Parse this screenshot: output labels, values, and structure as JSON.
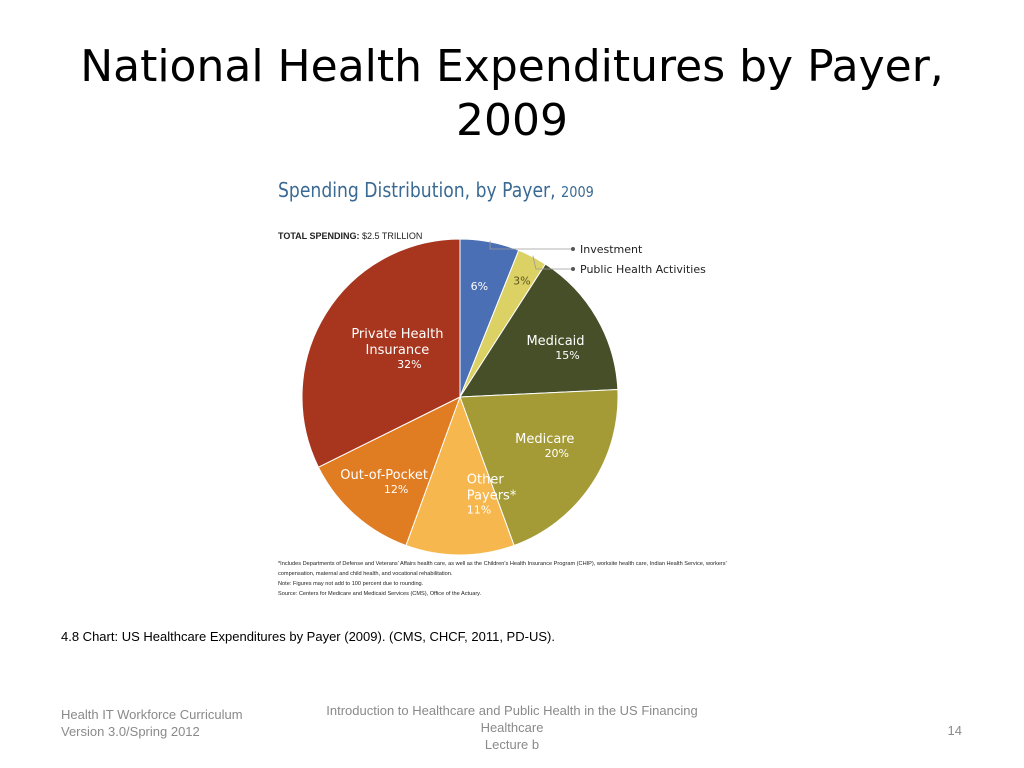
{
  "slide": {
    "title": "National Health Expenditures by Payer, 2009",
    "caption": "4.8  Chart:  US Healthcare Expenditures by Payer (2009).  (CMS, CHCF, 2011, PD-US).",
    "footer_left": [
      "Health IT Workforce Curriculum",
      "Version 3.0/Spring 2012"
    ],
    "footer_center": [
      "Introduction to Healthcare and Public Health in the US Financing",
      "Healthcare",
      "Lecture b"
    ],
    "page_number": "14"
  },
  "chart_data": {
    "type": "pie",
    "title": "Spending Distribution, by Payer,",
    "title_year": "2009",
    "total_label": "TOTAL SPENDING:",
    "total_value": "$2.5 TRILLION",
    "slices": [
      {
        "label": "Investment",
        "display_label": [],
        "value": 6,
        "value_label": "6%",
        "color": "#4a6fb5",
        "callout": "Investment"
      },
      {
        "label": "Public Health Activities",
        "display_label": [],
        "value": 3,
        "value_label": "3%",
        "color": "#dcd165",
        "callout": "Public Health Activities"
      },
      {
        "label": "Medicaid",
        "display_label": [
          "Medicaid"
        ],
        "value": 15,
        "value_label": "15%",
        "color": "#474f28"
      },
      {
        "label": "Medicare",
        "display_label": [
          "Medicare"
        ],
        "value": 20,
        "value_label": "20%",
        "color": "#a49b37"
      },
      {
        "label": "Other Payers*",
        "display_label": [
          "Other",
          "Payers*"
        ],
        "value": 11,
        "value_label": "11%",
        "color": "#f6b84e"
      },
      {
        "label": "Out-of-Pocket",
        "display_label": [
          "Out-of-Pocket"
        ],
        "value": 12,
        "value_label": "12%",
        "color": "#e07c22"
      },
      {
        "label": "Private Health Insurance",
        "display_label": [
          "Private Health",
          "Insurance"
        ],
        "value": 32,
        "value_label": "32%",
        "color": "#a8361f"
      }
    ],
    "notes": [
      "*Includes Departments of Defense and Veterans' Affairs health care, as well as the Children's Health Insurance Program (CHIP), worksite health care, Indian Health Service, workers'",
      "compensation, maternal and child health, and vocational rehabilitation.",
      "Note: Figures may not add to 100 percent due to rounding.",
      "Source: Centers for Medicare and Medicaid Services (CMS), Office of the Actuary."
    ]
  }
}
